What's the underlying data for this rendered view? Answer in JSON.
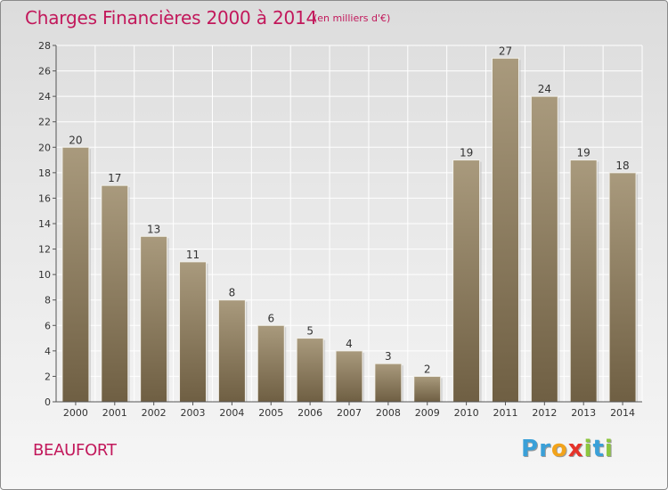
{
  "header": {
    "title": "Charges Financières 2000 à 2014",
    "subtitle": "(en milliers d'€)"
  },
  "footer": {
    "commune": "BEAUFORT",
    "logo_letters": [
      {
        "ch": "P",
        "color": "#3aa0d8"
      },
      {
        "ch": "r",
        "color": "#3aa0d8"
      },
      {
        "ch": "o",
        "color": "#f2a31b"
      },
      {
        "ch": "x",
        "color": "#e5332a"
      },
      {
        "ch": "i",
        "color": "#8cc63f"
      },
      {
        "ch": "t",
        "color": "#3aa0d8"
      },
      {
        "ch": "i",
        "color": "#8cc63f"
      }
    ]
  },
  "chart_data": {
    "type": "bar",
    "title": "Charges Financières 2000 à 2014",
    "subtitle": "(en milliers d'€)",
    "categories": [
      "2000",
      "2001",
      "2002",
      "2003",
      "2004",
      "2005",
      "2006",
      "2007",
      "2008",
      "2009",
      "2010",
      "2011",
      "2012",
      "2013",
      "2014"
    ],
    "values": [
      20,
      17,
      13,
      11,
      8,
      6,
      5,
      4,
      3,
      2,
      19,
      27,
      24,
      19,
      18
    ],
    "ylim": [
      0,
      28
    ],
    "yticks": [
      0,
      2,
      4,
      6,
      8,
      10,
      12,
      14,
      16,
      18,
      20,
      22,
      24,
      26,
      28
    ],
    "grid": true,
    "bar_color": "#8b7b5e"
  }
}
